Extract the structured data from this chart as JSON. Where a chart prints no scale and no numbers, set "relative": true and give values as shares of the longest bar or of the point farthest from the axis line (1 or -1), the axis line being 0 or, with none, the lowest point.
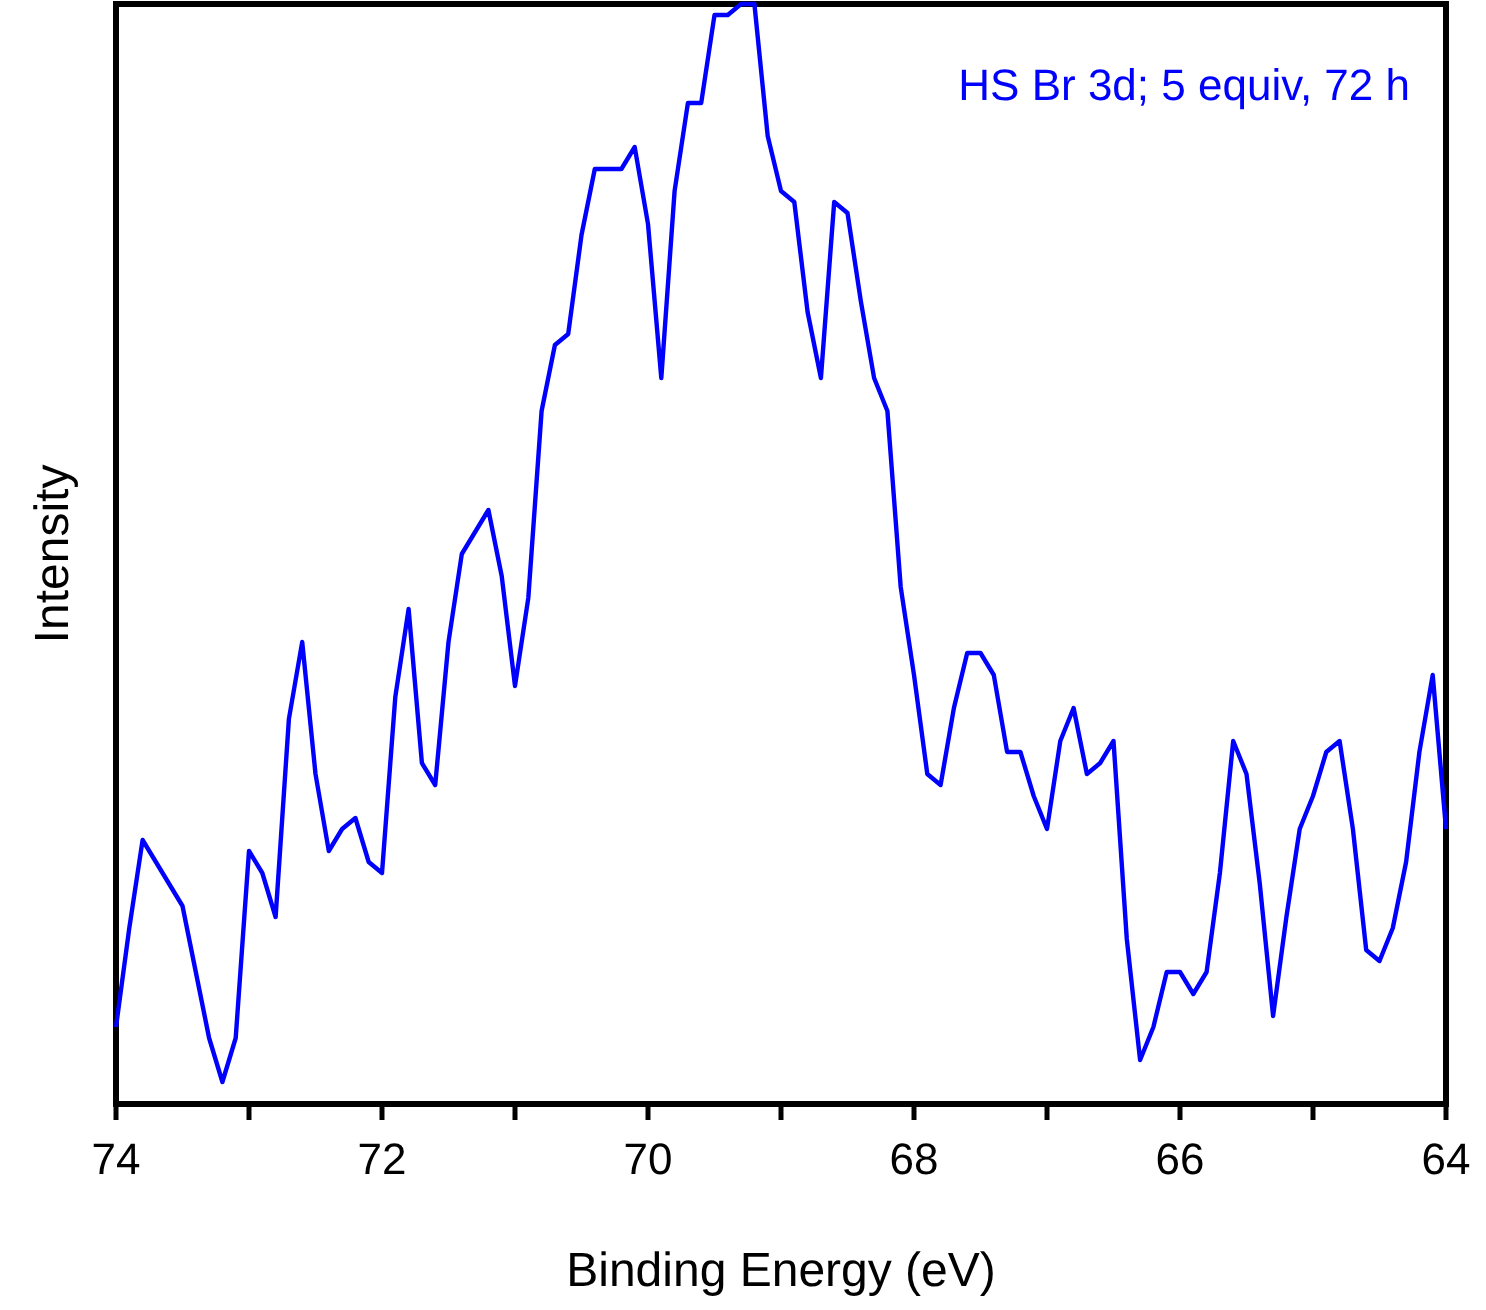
{
  "chart_data": {
    "type": "line",
    "relative": true,
    "xlabel": "Binding Energy (eV)",
    "ylabel": "Intensity",
    "xlim": [
      74,
      64
    ],
    "xticks": [
      74,
      {
        "value": 73,
        "label": null
      },
      72,
      {
        "value": 71,
        "label": null
      },
      70,
      {
        "value": 69,
        "label": null
      },
      68,
      {
        "value": 67,
        "label": null
      },
      66,
      {
        "value": 65,
        "label": null
      },
      64
    ],
    "x": [
      74,
      73.9,
      73.8,
      73.7,
      73.6,
      73.5,
      73.4,
      73.3,
      73.2,
      73.1,
      73,
      72.9,
      72.8,
      72.7,
      72.6,
      72.5,
      72.4,
      72.3,
      72.2,
      72.1,
      72,
      71.9,
      71.8,
      71.7,
      71.6,
      71.5,
      71.4,
      71.3,
      71.2,
      71.1,
      71,
      70.9,
      70.8,
      70.7,
      70.6,
      70.5,
      70.4,
      70.3,
      70.2,
      70.1,
      70,
      69.9,
      69.8,
      69.7,
      69.6,
      69.5,
      69.4,
      69.3,
      69.2,
      69.1,
      69,
      68.9,
      68.8,
      68.7,
      68.6,
      68.5,
      68.4,
      68.3,
      68.2,
      68.1,
      68,
      67.9,
      67.8,
      67.7,
      67.6,
      67.5,
      67.4,
      67.3,
      67.2,
      67.1,
      67,
      66.9,
      66.8,
      66.7,
      66.6,
      66.5,
      66.4,
      66.3,
      66.2,
      66.1,
      66,
      65.9,
      65.8,
      65.7,
      65.6,
      65.5,
      65.4,
      65.3,
      65.2,
      65.1,
      65,
      64.9,
      64.8,
      64.7,
      64.6,
      64.5,
      64.4,
      64.3,
      64.2,
      64.1,
      64
    ],
    "series": [
      {
        "name": "HS Br 3d; 5 equiv, 72 h",
        "color": "#0000ff",
        "values": [
          0.07,
          0.16,
          0.24,
          0.22,
          0.2,
          0.18,
          0.12,
          0.06,
          0.02,
          0.06,
          0.23,
          0.21,
          0.17,
          0.35,
          0.42,
          0.3,
          0.23,
          0.25,
          0.26,
          0.22,
          0.21,
          0.37,
          0.45,
          0.31,
          0.29,
          0.42,
          0.5,
          0.52,
          0.54,
          0.48,
          0.38,
          0.46,
          0.63,
          0.69,
          0.7,
          0.79,
          0.85,
          0.85,
          0.85,
          0.87,
          0.8,
          0.66,
          0.83,
          0.91,
          0.91,
          0.99,
          0.99,
          1.0,
          1.0,
          0.88,
          0.83,
          0.82,
          0.72,
          0.66,
          0.82,
          0.81,
          0.73,
          0.66,
          0.63,
          0.47,
          0.39,
          0.3,
          0.29,
          0.36,
          0.41,
          0.41,
          0.39,
          0.32,
          0.32,
          0.28,
          0.25,
          0.33,
          0.36,
          0.3,
          0.31,
          0.33,
          0.15,
          0.04,
          0.07,
          0.12,
          0.12,
          0.1,
          0.12,
          0.21,
          0.33,
          0.3,
          0.2,
          0.08,
          0.17,
          0.25,
          0.28,
          0.32,
          0.33,
          0.25,
          0.14,
          0.13,
          0.16,
          0.22,
          0.32,
          0.39,
          0.25
        ]
      }
    ],
    "legend": "top right",
    "line_style": "solid",
    "marker": "none"
  }
}
